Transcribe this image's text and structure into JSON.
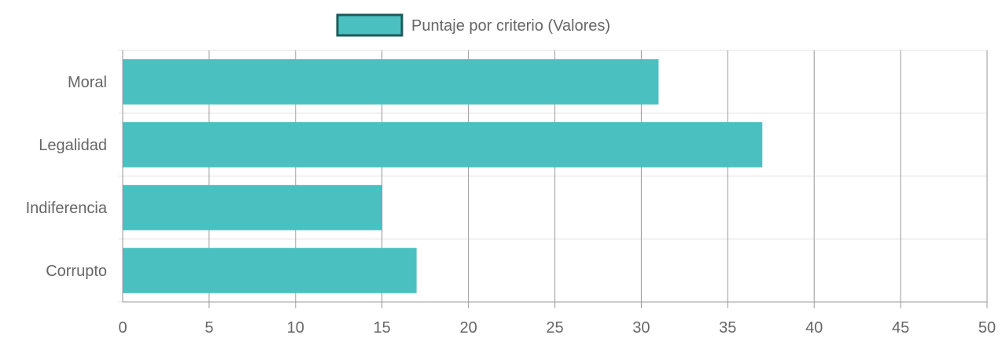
{
  "chart_data": {
    "type": "bar",
    "orientation": "horizontal",
    "categories": [
      "Moral",
      "Legalidad",
      "Indiferencia",
      "Corrupto"
    ],
    "series": [
      {
        "name": "Puntaje por criterio (Valores)",
        "values": [
          31,
          37,
          15,
          17
        ]
      }
    ],
    "xlim": [
      0,
      50
    ],
    "x_ticks": [
      "0",
      "5",
      "10",
      "15",
      "20",
      "25",
      "30",
      "35",
      "40",
      "45",
      "50"
    ],
    "grid": true,
    "legend_position": "top-center",
    "colors": {
      "bar_fill": "#4bc0c0",
      "legend_border": "#1e5a5a",
      "grid": "#e5e5e5",
      "grid_vertical": "#9a9a9a",
      "axis": "#999999",
      "text": "#666666"
    }
  }
}
